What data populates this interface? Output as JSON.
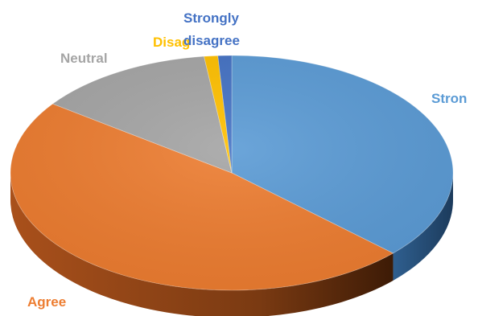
{
  "chart_data": {
    "type": "pie",
    "title": "",
    "style": "3d",
    "categories": [
      "Strongly agree",
      "Agree",
      "Neutral",
      "Disagree",
      "Strongly disagree"
    ],
    "values": [
      37,
      48,
      13,
      1,
      1
    ],
    "colors": [
      "#5B9BD5",
      "#ED7D31",
      "#A5A5A5",
      "#FFC000",
      "#4472C4"
    ],
    "labels": [
      {
        "text": "Stron",
        "color": "#5B9BD5"
      },
      {
        "text": "Agree",
        "color": "#ED7D31"
      },
      {
        "text": "Neutral",
        "color": "#A5A5A5"
      },
      {
        "text": "Disag",
        "color": "#FFC000"
      },
      {
        "text": "Strongly",
        "color": "#4472C4"
      },
      {
        "text": "disagree",
        "color": "#4472C4"
      }
    ],
    "legend": "none"
  }
}
